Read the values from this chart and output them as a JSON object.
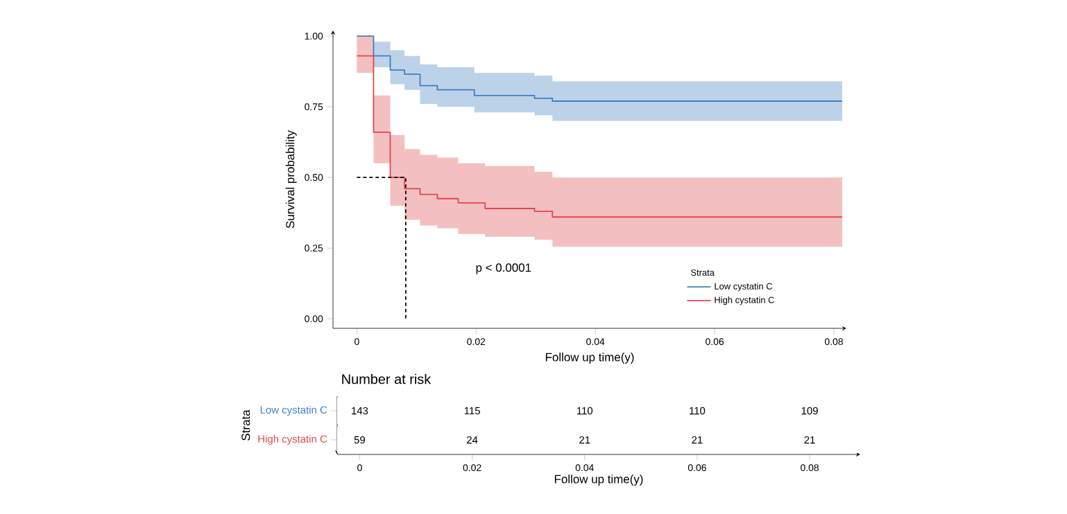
{
  "chart_data": [
    {
      "type": "step",
      "xlabel": "Follow up time(y)",
      "ylabel": "Survival probability",
      "legend_title": "Strata",
      "legend": "bottom right",
      "marker": "none",
      "xlim": [
        -0.004,
        0.0821
      ],
      "ylim": [
        -0.034,
        1.02
      ],
      "xticks": [
        0,
        0.02,
        0.04,
        0.06,
        0.08
      ],
      "yticks": [
        {
          "value": 0,
          "label": "0.00"
        },
        {
          "value": 0.25,
          "label": "0.25"
        },
        {
          "value": 0.5,
          "label": "0.50"
        },
        {
          "value": 0.75,
          "label": "0.75"
        },
        {
          "value": 1,
          "label": "1.00"
        }
      ],
      "annotations": [
        "p < 0.0001"
      ],
      "series": [
        {
          "name": "Low cystatin C",
          "color": "#3f7fc0",
          "x": [
            0,
            0.0028,
            0.0056,
            0.008,
            0.0106,
            0.0135,
            0.0197,
            0.0298,
            0.0328,
            0.0814
          ],
          "values": [
            1.0,
            0.93,
            0.88,
            0.865,
            0.825,
            0.81,
            0.79,
            0.78,
            0.77,
            0.77
          ],
          "upper": [
            1.0,
            0.98,
            0.95,
            0.93,
            0.9,
            0.89,
            0.87,
            0.86,
            0.84,
            0.84
          ],
          "lower": [
            1.0,
            0.89,
            0.83,
            0.81,
            0.76,
            0.75,
            0.73,
            0.72,
            0.7,
            0.7
          ]
        },
        {
          "name": "High cystatin C",
          "color": "#e0474c",
          "x": [
            0,
            0.0028,
            0.0056,
            0.008,
            0.0106,
            0.0135,
            0.017,
            0.0215,
            0.0298,
            0.0328,
            0.0814
          ],
          "values": [
            0.93,
            0.66,
            0.5,
            0.46,
            0.44,
            0.425,
            0.41,
            0.39,
            0.38,
            0.36,
            0.36
          ],
          "upper": [
            1.0,
            0.79,
            0.65,
            0.6,
            0.58,
            0.57,
            0.55,
            0.54,
            0.52,
            0.5,
            0.5
          ],
          "lower": [
            0.87,
            0.55,
            0.4,
            0.35,
            0.33,
            0.32,
            0.3,
            0.29,
            0.28,
            0.255,
            0.255
          ]
        },
        {
          "type": "line",
          "color": "#000000",
          "line_style": "dashed",
          "x": [
            0,
            0.0082,
            0.0082
          ],
          "values": [
            0.5,
            0.5,
            0
          ]
        }
      ]
    },
    {
      "type": "heatmap",
      "title": "Number at risk",
      "xlabel": "Follow up time(y)",
      "ylabel": "Strata",
      "categories": [
        "0",
        "0.02",
        "0.04",
        "0.06",
        "0.08"
      ],
      "y_categories": [
        "Low cystatin C",
        "High cystatin C"
      ],
      "cells": [
        [
          143,
          115,
          110,
          110,
          109
        ],
        [
          59,
          24,
          21,
          21,
          21
        ]
      ],
      "data_labels": true
    }
  ]
}
